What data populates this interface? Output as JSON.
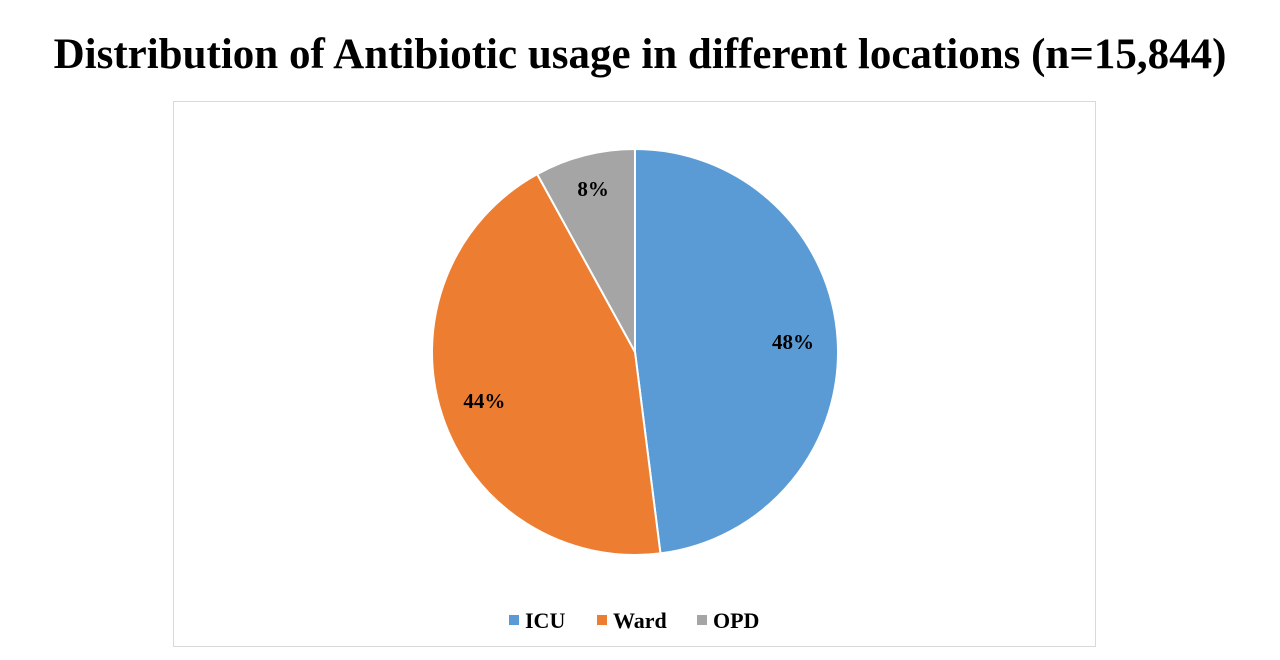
{
  "chart_data": {
    "type": "pie",
    "title": "Distribution of Antibiotic usage in different locations (n=15,844)",
    "categories": [
      "ICU",
      "Ward",
      "OPD"
    ],
    "values": [
      48,
      44,
      8
    ],
    "data_labels": [
      "48%",
      "44%",
      "8%"
    ],
    "colors": [
      "#5b9bd5",
      "#ed7d31",
      "#a5a5a5"
    ],
    "start_angle": "12 o'clock, clockwise",
    "legend": "bottom"
  }
}
